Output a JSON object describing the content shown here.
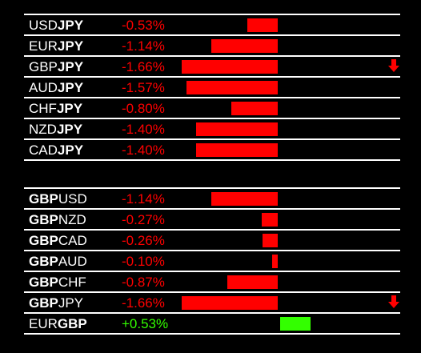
{
  "colors": {
    "negative": "#ff0000",
    "positive": "#33ff00",
    "text": "#ffffff",
    "background": "#000000"
  },
  "groups": [
    {
      "rows": [
        {
          "base": "USD",
          "quote": "JPY",
          "bold": "quote",
          "change": "-0.53%",
          "value": -0.53,
          "trend": "none"
        },
        {
          "base": "EUR",
          "quote": "JPY",
          "bold": "quote",
          "change": "-1.14%",
          "value": -1.14,
          "trend": "none"
        },
        {
          "base": "GBP",
          "quote": "JPY",
          "bold": "quote",
          "change": "-1.66%",
          "value": -1.66,
          "trend": "down"
        },
        {
          "base": "AUD",
          "quote": "JPY",
          "bold": "quote",
          "change": "-1.57%",
          "value": -1.57,
          "trend": "none"
        },
        {
          "base": "CHF",
          "quote": "JPY",
          "bold": "quote",
          "change": "-0.80%",
          "value": -0.8,
          "trend": "none"
        },
        {
          "base": "NZD",
          "quote": "JPY",
          "bold": "quote",
          "change": "-1.40%",
          "value": -1.4,
          "trend": "none"
        },
        {
          "base": "CAD",
          "quote": "JPY",
          "bold": "quote",
          "change": "-1.40%",
          "value": -1.4,
          "trend": "none"
        }
      ]
    },
    {
      "rows": [
        {
          "base": "GBP",
          "quote": "USD",
          "bold": "base",
          "change": "-1.14%",
          "value": -1.14,
          "trend": "none"
        },
        {
          "base": "GBP",
          "quote": "NZD",
          "bold": "base",
          "change": "-0.27%",
          "value": -0.27,
          "trend": "none"
        },
        {
          "base": "GBP",
          "quote": "CAD",
          "bold": "base",
          "change": "-0.26%",
          "value": -0.26,
          "trend": "none"
        },
        {
          "base": "GBP",
          "quote": "AUD",
          "bold": "base",
          "change": "-0.10%",
          "value": -0.1,
          "trend": "none"
        },
        {
          "base": "GBP",
          "quote": "CHF",
          "bold": "base",
          "change": "-0.87%",
          "value": -0.87,
          "trend": "none"
        },
        {
          "base": "GBP",
          "quote": "JPY",
          "bold": "base",
          "change": "-1.66%",
          "value": -1.66,
          "trend": "down"
        },
        {
          "base": "EUR",
          "quote": "GBP",
          "bold": "quote",
          "change": "+0.53%",
          "value": 0.53,
          "trend": "none"
        }
      ]
    }
  ]
}
